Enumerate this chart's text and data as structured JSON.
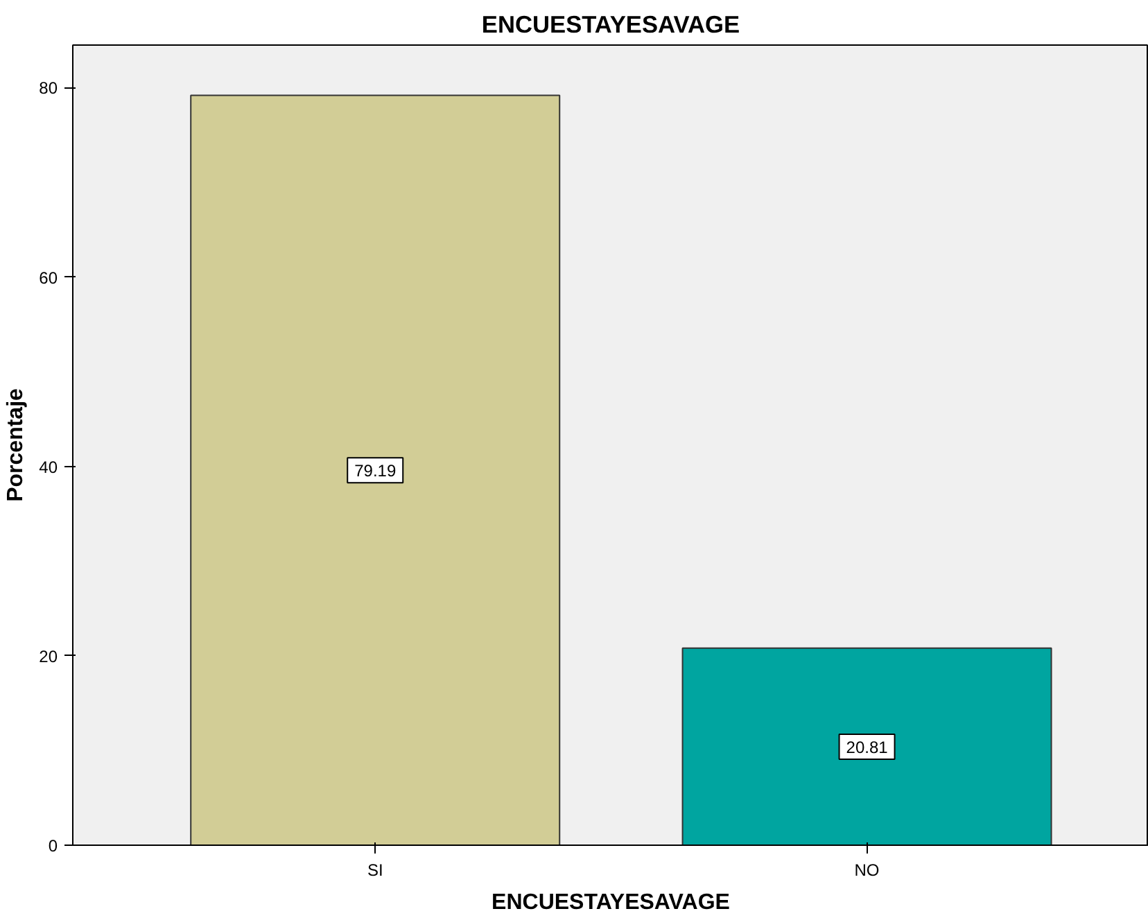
{
  "chart_data": {
    "type": "bar",
    "title": "ENCUESTAYESAVAGE",
    "xlabel": "ENCUESTAYESAVAGE",
    "ylabel": "Porcentaje",
    "categories": [
      "SI",
      "NO"
    ],
    "values": [
      79.19,
      20.81
    ],
    "colors": [
      "#d2cd96",
      "#00a5a0"
    ],
    "ylim": [
      0,
      84.5
    ],
    "yticks": [
      0,
      20,
      40,
      60,
      80
    ],
    "grid": false,
    "data_labels": true
  }
}
